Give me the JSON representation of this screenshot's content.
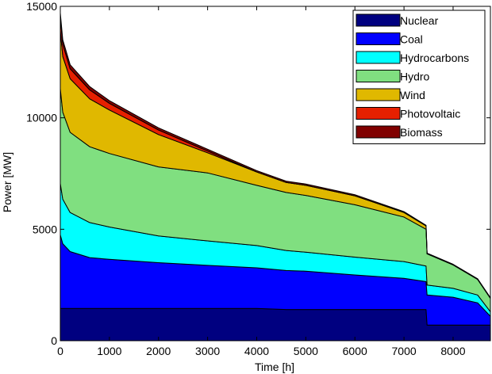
{
  "chart_data": {
    "type": "area",
    "title": "",
    "xlabel": "Time [h]",
    "ylabel": "Power [MW]",
    "xlim": [
      0,
      8760
    ],
    "ylim": [
      0,
      15000
    ],
    "xticks": [
      0,
      1000,
      2000,
      3000,
      4000,
      5000,
      6000,
      7000,
      8000
    ],
    "yticks": [
      0,
      5000,
      10000,
      15000
    ],
    "legend_position": "top-right",
    "grid": false,
    "x": [
      0,
      50,
      200,
      600,
      1000,
      2000,
      3000,
      4000,
      4600,
      5000,
      6000,
      7000,
      7450,
      7470,
      8000,
      8500,
      8760
    ],
    "series": [
      {
        "name": "Nuclear",
        "color": "#000080",
        "values": [
          1450,
          1450,
          1450,
          1450,
          1450,
          1450,
          1450,
          1450,
          1400,
          1400,
          1400,
          1400,
          1400,
          700,
          700,
          700,
          700
        ]
      },
      {
        "name": "Coal",
        "color": "#0000ff",
        "values": [
          3300,
          2900,
          2550,
          2280,
          2200,
          2050,
          1930,
          1820,
          1750,
          1720,
          1550,
          1400,
          1250,
          1350,
          1250,
          1000,
          400
        ]
      },
      {
        "name": "Hydrocarbons",
        "color": "#00ffff",
        "values": [
          2300,
          2000,
          1750,
          1570,
          1450,
          1200,
          1100,
          1000,
          900,
          850,
          800,
          750,
          700,
          450,
          400,
          350,
          200
        ]
      },
      {
        "name": "Hydro",
        "color": "#80df80",
        "values": [
          4250,
          3900,
          3600,
          3400,
          3300,
          3100,
          3050,
          2700,
          2600,
          2550,
          2350,
          2000,
          1650,
          1400,
          1050,
          700,
          600
        ]
      },
      {
        "name": "Wind",
        "color": "#e0b800",
        "values": [
          2600,
          2500,
          2400,
          2150,
          1950,
          1450,
          900,
          600,
          450,
          450,
          400,
          200,
          150,
          0,
          0,
          0,
          0
        ]
      },
      {
        "name": "Photovoltaic",
        "color": "#e62000",
        "values": [
          600,
          550,
          450,
          400,
          300,
          200,
          80,
          0,
          0,
          0,
          0,
          0,
          0,
          0,
          0,
          0,
          0
        ]
      },
      {
        "name": "Biomass",
        "color": "#800000",
        "values": [
          200,
          200,
          180,
          150,
          120,
          100,
          80,
          60,
          60,
          60,
          50,
          40,
          30,
          30,
          30,
          30,
          30
        ]
      }
    ]
  }
}
